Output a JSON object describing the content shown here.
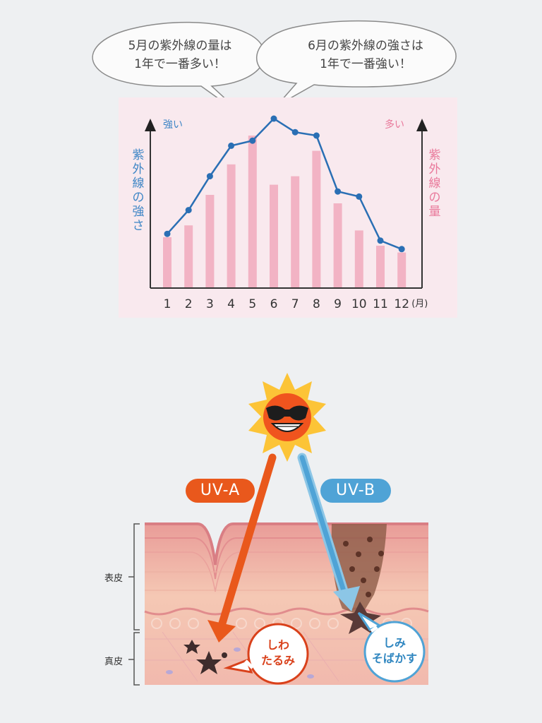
{
  "callouts": {
    "left": [
      "5月の紫外線の量は",
      "1年で一番多い！"
    ],
    "right": [
      "6月の紫外線の強さは",
      "1年で一番強い！"
    ]
  },
  "chart_data": {
    "type": "bar",
    "title": "",
    "categories": [
      "1",
      "2",
      "3",
      "4",
      "5",
      "6",
      "7",
      "8",
      "9",
      "10",
      "11",
      "12"
    ],
    "x_unit": "(月)",
    "series": [
      {
        "name": "紫外線の量",
        "type": "bar",
        "color": "#f2b3c4",
        "values": [
          30,
          37,
          55,
          73,
          90,
          61,
          66,
          81,
          50,
          34,
          25,
          21
        ]
      },
      {
        "name": "紫外線の強さ",
        "type": "line",
        "color": "#2a6fb4",
        "values": [
          32,
          46,
          66,
          84,
          87,
          100,
          92,
          90,
          57,
          54,
          28,
          23
        ]
      }
    ],
    "y_left_label": "紫外線の強さ",
    "y_left_tag": "強い",
    "y_right_label": "紫外線の量",
    "y_right_tag": "多い",
    "ylim": [
      0,
      100
    ],
    "grid": false,
    "colors": {
      "left_axis": "#3f86c6",
      "right_axis": "#e9799b",
      "background": "#f9e9ee"
    }
  },
  "illustration": {
    "uva_label": "UV-A",
    "uvb_label": "UV-B",
    "epidermis_label": "表皮",
    "dermis_label": "真皮",
    "uva_effect": [
      "しわ",
      "たるみ"
    ],
    "uvb_effect": [
      "しみ",
      "そばかす"
    ],
    "colors": {
      "uva": "#e9581c",
      "uvb": "#4fa3d6"
    }
  }
}
